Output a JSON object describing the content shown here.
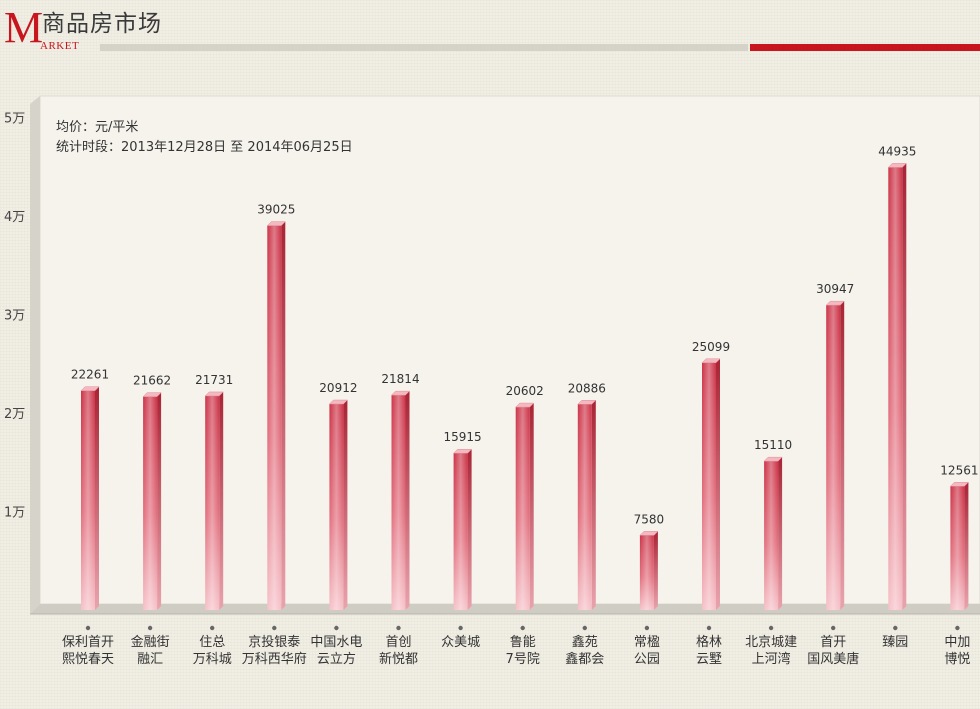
{
  "header": {
    "logo_letter": "M",
    "logo_rest": "ARKET",
    "title": "商品房市场",
    "accent_color": "#c8161e",
    "rule_color": "#d5d2c8"
  },
  "info": {
    "unit_line": "均价：元/平米",
    "period_line": "统计时段：2013年12月28日 至 2014年06月25日"
  },
  "chart_data": {
    "type": "bar",
    "title": "",
    "xlabel": "",
    "ylabel": "",
    "ylim": [
      0,
      50000
    ],
    "yticks": [
      {
        "value": 10000,
        "label": "1万"
      },
      {
        "value": 20000,
        "label": "2万"
      },
      {
        "value": 30000,
        "label": "3万"
      },
      {
        "value": 40000,
        "label": "4万"
      },
      {
        "value": 50000,
        "label": "5万"
      }
    ],
    "categories": [
      [
        "保利首开",
        "熙悦春天"
      ],
      [
        "金融街",
        "融汇"
      ],
      [
        "住总",
        "万科城"
      ],
      [
        "京投银泰",
        "万科西华府"
      ],
      [
        "中国水电",
        "云立方"
      ],
      [
        "首创",
        "新悦都"
      ],
      [
        "众美城"
      ],
      [
        "鲁能",
        "7号院"
      ],
      [
        "鑫苑",
        "鑫都会"
      ],
      [
        "常楹",
        "公园"
      ],
      [
        "格林",
        "云墅"
      ],
      [
        "北京城建",
        "上河湾"
      ],
      [
        "首开",
        "国风美唐"
      ],
      [
        "臻园"
      ],
      [
        "中加",
        "博悦"
      ]
    ],
    "values": [
      22261,
      21662,
      21731,
      39025,
      20912,
      21814,
      15915,
      20602,
      20886,
      7580,
      25099,
      15110,
      30947,
      44935,
      12561
    ],
    "bar_color": "#d9475a",
    "grid": false
  }
}
